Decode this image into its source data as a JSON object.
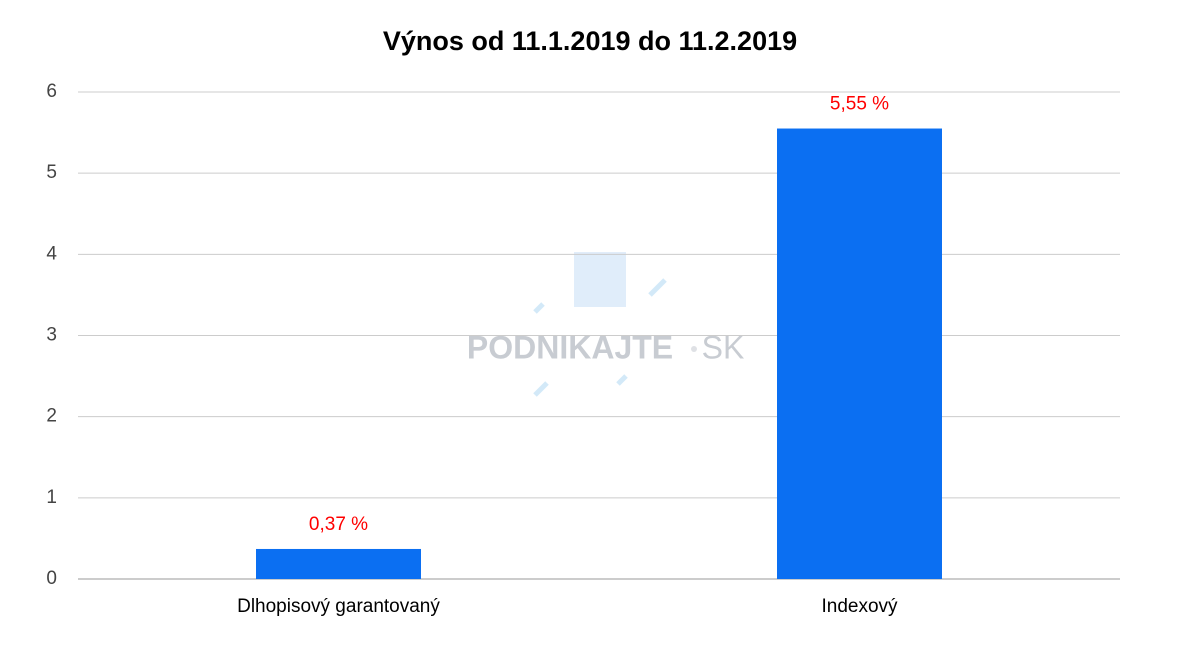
{
  "chart_data": {
    "type": "bar",
    "title": "Výnos od 11.1.2019 do 11.2.2019",
    "categories": [
      "Dlhopisový garantovaný",
      "Indexový"
    ],
    "values": [
      0.37,
      5.55
    ],
    "value_labels": [
      "0,37 %",
      "5,55 %"
    ],
    "color": "#0b6ff2",
    "value_label_color": "#ff0000",
    "ylim": [
      0,
      6
    ],
    "yticks": [
      0,
      1,
      2,
      3,
      4,
      5,
      6
    ],
    "grid": true,
    "watermark": [
      "PODNIKAJTE",
      "SK"
    ]
  }
}
